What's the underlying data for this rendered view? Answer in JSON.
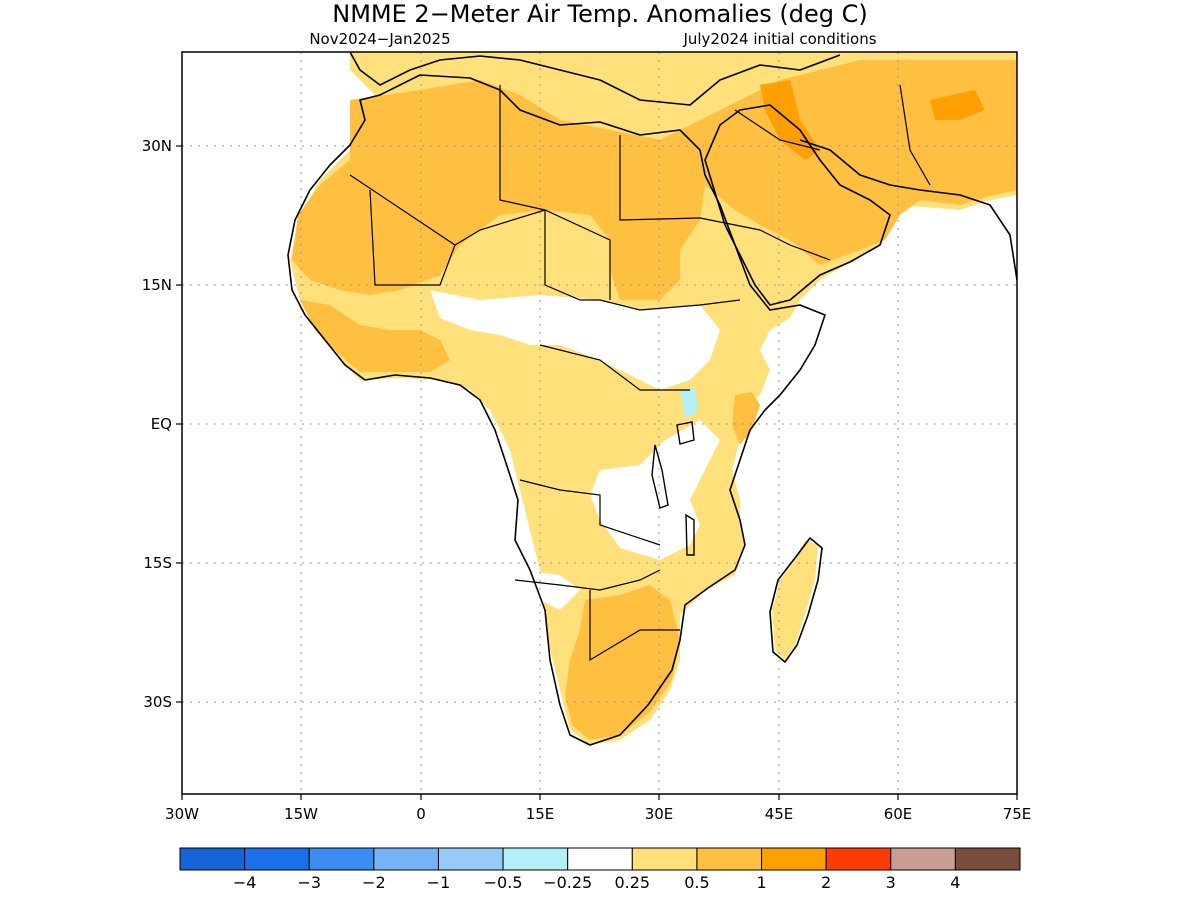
{
  "title": "NMME 2−Meter Air Temp. Anomalies (deg C)",
  "subtitle_left": "Nov2024−Jan2025",
  "subtitle_right": "July2024 initial conditions",
  "lat_ticks": [
    "30N",
    "15N",
    "EQ",
    "15S",
    "30S"
  ],
  "lon_ticks": [
    "30W",
    "15W",
    "0",
    "15E",
    "30E",
    "45E",
    "60E",
    "75E"
  ],
  "colorbar": {
    "colors": [
      "#1565d8",
      "#1e6fea",
      "#3a8cf0",
      "#74b4f6",
      "#96cbf8",
      "#b2f0f8",
      "#ffffff",
      "#ffe07a",
      "#ffbf40",
      "#ffa000",
      "#ff3c00",
      "#c89e90",
      "#7a4c3c"
    ],
    "labels": [
      "−4",
      "−3",
      "−2",
      "−1",
      "−0.5",
      "−0.25",
      "0.25",
      "0.5",
      "1",
      "2",
      "3",
      "4"
    ]
  },
  "map_colors": {
    "light": "#ffe07a",
    "medium": "#ffbf40",
    "strong": "#ffa000",
    "cool": "#b2f0f8",
    "coast": "#000000"
  }
}
